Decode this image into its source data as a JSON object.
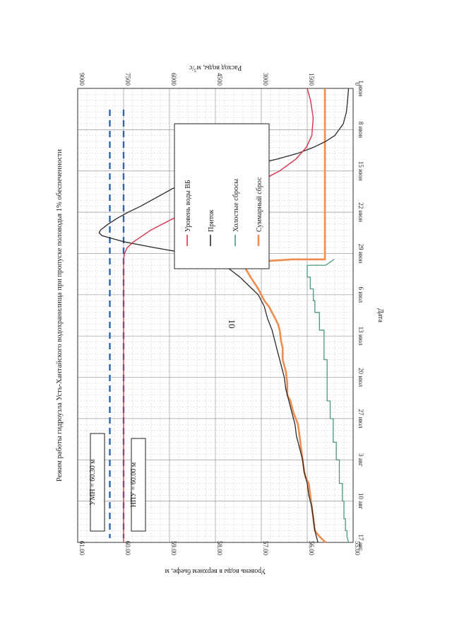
{
  "page": {
    "number": "10"
  },
  "chart_data": {
    "type": "line",
    "orientation": "rotated 90deg clockwise",
    "title": "Режим работы гидроузла Усть-Хантайского водохранилища при пропуске половодья 1% обеспеченности",
    "xlabel": "Дата",
    "ylabel_left": "Уровень воды в верхнем бьефе, м",
    "ylabel_right": "Расход воды, м³/с",
    "ylabel_right_parts": [
      "Расход воды, м",
      "3",
      "/с"
    ],
    "x_ticks": [
      "1 июн",
      "8 июн",
      "15 июн",
      "22 июн",
      "29 июн",
      "6 июл",
      "13 июл",
      "20 июл",
      "27 июл",
      "3 авг",
      "10 авг",
      "17 авг"
    ],
    "xlim": [
      1,
      78
    ],
    "ylim_left": [
      55.0,
      61.0
    ],
    "y_ticks_left": [
      "55.00",
      "56.00",
      "57.00",
      "58.00",
      "59.00",
      "60.00",
      "61.00"
    ],
    "ylim_right": [
      0,
      9000
    ],
    "y_ticks_right": [
      "0",
      "1500",
      "3000",
      "4500",
      "6000",
      "7500",
      "9000"
    ],
    "grid": true,
    "legend_position": "right",
    "reference_lines": [
      {
        "label": "УМН = 60.30 м",
        "value": 60.3,
        "color": "#2b63b5",
        "style": "dashed"
      },
      {
        "label": "НПУ = 60.00 м",
        "value": 60.0,
        "color": "#2b63b5",
        "style": "dashed"
      }
    ],
    "series": [
      {
        "name": "Уровень воды ВБ",
        "axis": "left",
        "color": "#d9334a",
        "x": [
          1,
          3,
          6,
          9,
          11,
          13,
          15,
          17,
          19,
          21,
          23,
          25,
          27,
          28,
          29,
          30,
          78
        ],
        "y": [
          56.0,
          55.93,
          55.87,
          55.9,
          56.02,
          56.25,
          56.6,
          57.1,
          57.7,
          58.3,
          58.9,
          59.4,
          59.78,
          59.92,
          59.98,
          60.0,
          60.0
        ]
      },
      {
        "name": "Приток",
        "axis": "right",
        "color": "#2a2a2a",
        "x": [
          1,
          3,
          5,
          7,
          9,
          10,
          11,
          12,
          13,
          14,
          15,
          16,
          17,
          18,
          19,
          20,
          21,
          22,
          23,
          24,
          25,
          25.5,
          26,
          27,
          28,
          29,
          30,
          31,
          32,
          33,
          34,
          35,
          36,
          38,
          40,
          42,
          44,
          46,
          48,
          50,
          52,
          54,
          56,
          58,
          60,
          62,
          64,
          66,
          68,
          70,
          72,
          74,
          76,
          77,
          78
        ],
        "y": [
          150,
          180,
          220,
          320,
          600,
          900,
          1300,
          1800,
          2500,
          3300,
          4100,
          4850,
          5450,
          5900,
          6250,
          6600,
          6950,
          7350,
          7700,
          8000,
          8250,
          8300,
          8200,
          7500,
          6500,
          5400,
          4700,
          4200,
          3950,
          3700,
          3500,
          3300,
          3100,
          2900,
          2800,
          2650,
          2550,
          2450,
          2350,
          2250,
          2200,
          2100,
          2000,
          1900,
          1850,
          1750,
          1650,
          1600,
          1500,
          1450,
          1350,
          1300,
          1250,
          1200,
          1150
        ]
      },
      {
        "name": "Холостые сбросы",
        "axis": "right",
        "color": "#4c9a7a",
        "x": [
          30,
          31,
          31,
          33,
          33,
          35,
          35,
          37,
          37,
          39,
          39,
          42,
          42,
          47,
          47,
          54,
          54,
          57,
          57,
          61,
          61,
          64,
          64,
          68,
          68,
          71,
          71,
          74,
          74,
          76,
          76,
          77,
          78
        ],
        "y": [
          620,
          900,
          1500,
          1500,
          1400,
          1400,
          1300,
          1300,
          1250,
          1250,
          1100,
          1100,
          950,
          950,
          850,
          850,
          750,
          750,
          650,
          650,
          550,
          550,
          450,
          450,
          350,
          350,
          300,
          300,
          250,
          250,
          200,
          200,
          150
        ]
      },
      {
        "name": "Суммарный сброс",
        "axis": "right",
        "color": "#ef8c50",
        "x": [
          1,
          30,
          30,
          30.5,
          31,
          33,
          35,
          37,
          38,
          39,
          40,
          41,
          42,
          44,
          45,
          47,
          49,
          51,
          53,
          54,
          56,
          58,
          60,
          62,
          64,
          66,
          67,
          68,
          70,
          72,
          74,
          76,
          77,
          78
        ],
        "y": [
          920,
          920,
          2000,
          3500,
          3580,
          3350,
          3100,
          2900,
          2750,
          2650,
          2550,
          2450,
          2400,
          2350,
          2300,
          2300,
          2200,
          2150,
          2150,
          2050,
          1950,
          1800,
          1750,
          1700,
          1650,
          1600,
          1550,
          1450,
          1400,
          1350,
          1300,
          1250,
          1100,
          900
        ]
      }
    ]
  }
}
